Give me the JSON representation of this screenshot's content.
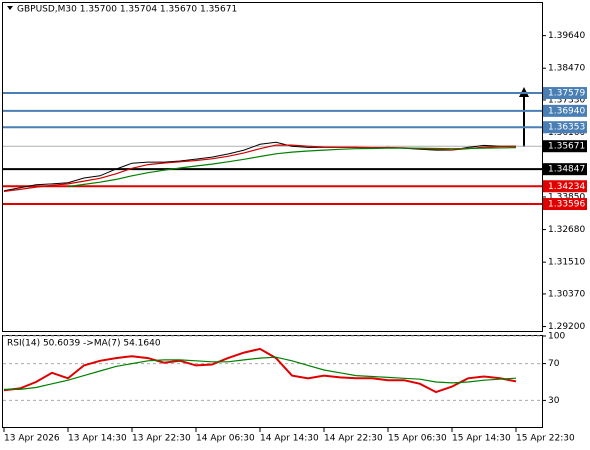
{
  "chart_data": [
    {
      "type": "line",
      "title": "GBPUSD,M30  1.35700 1.35704 1.35670 1.35671",
      "ylim": [
        1.2904,
        1.4081
      ],
      "yticks": [
        {
          "value": 1.3964,
          "label": "1.39640"
        },
        {
          "value": 1.3847,
          "label": "1.38470"
        },
        {
          "value": 1.3733,
          "label": "1.37330"
        },
        {
          "value": 1.3616,
          "label": "1.36160"
        },
        {
          "value": 1.3385,
          "label": "1.33850"
        },
        {
          "value": 1.3268,
          "label": "1.32680"
        },
        {
          "value": 1.3151,
          "label": "1.31510"
        },
        {
          "value": 1.3037,
          "label": "1.30370"
        },
        {
          "value": 1.292,
          "label": "1.29200"
        }
      ],
      "grid": false,
      "series": [
        {
          "color": "#000000",
          "values": [
            1.3407,
            1.3418,
            1.3429,
            1.3432,
            1.3436,
            1.3453,
            1.3461,
            1.3485,
            1.3506,
            1.351,
            1.351,
            1.3514,
            1.3521,
            1.3528,
            1.3539,
            1.3553,
            1.3574,
            1.3581,
            1.3567,
            1.3563,
            1.3563,
            1.3563,
            1.3563,
            1.356,
            1.3563,
            1.356,
            1.3556,
            1.3553,
            1.3553,
            1.3563,
            1.357,
            1.3567,
            1.3567
          ]
        },
        {
          "color": "#d00000",
          "values": [
            1.3405,
            1.3412,
            1.342,
            1.3427,
            1.3432,
            1.3442,
            1.3452,
            1.3468,
            1.3488,
            1.3501,
            1.3507,
            1.3511,
            1.3516,
            1.3522,
            1.3531,
            1.3543,
            1.3558,
            1.3571,
            1.3571,
            1.3567,
            1.3564,
            1.3563,
            1.3563,
            1.3562,
            1.3562,
            1.3561,
            1.3558,
            1.3556,
            1.3554,
            1.3558,
            1.3564,
            1.3566,
            1.3567
          ]
        },
        {
          "color": "#008000",
          "values": [
            null,
            null,
            null,
            null,
            1.3422,
            1.343,
            1.3438,
            1.3448,
            1.3461,
            1.3472,
            1.3481,
            1.3489,
            1.3496,
            1.3503,
            1.3511,
            1.352,
            1.353,
            1.354,
            1.3546,
            1.355,
            1.3553,
            1.3556,
            1.3558,
            1.3559,
            1.356,
            1.356,
            1.356,
            1.3559,
            1.3558,
            1.3559,
            1.356,
            1.3561,
            1.3562
          ]
        }
      ],
      "levels": [
        {
          "value": 1.37579,
          "color": "#4a7fb5"
        },
        {
          "value": 1.3694,
          "label": "1.36940",
          "color": "#4a7fb5"
        },
        {
          "value": 1.36353,
          "color": "#4a7fb5"
        },
        {
          "value": 1.34847,
          "color": "#000000"
        },
        {
          "value": 1.34234,
          "color": "#e00000"
        },
        {
          "value": 1.33596,
          "color": "#e00000"
        }
      ],
      "current_price": 1.35671
    },
    {
      "type": "line",
      "title": "RSI(14) 50.6039  ->MA(7) 54.1640",
      "categories": [
        "13 Apr 2026",
        null,
        null,
        null,
        "13 Apr 14:30",
        null,
        null,
        null,
        "13 Apr 22:30",
        null,
        null,
        null,
        "14 Apr 06:30",
        null,
        null,
        null,
        "14 Apr 14:30",
        null,
        null,
        null,
        "14 Apr 22:30",
        null,
        null,
        null,
        "15 Apr 06:30",
        null,
        null,
        null,
        "15 Apr 14:30",
        null,
        null,
        null,
        "15 Apr 22:30"
      ],
      "ylim": [
        0,
        100
      ],
      "yticks": [
        100,
        70,
        30
      ],
      "grid": true,
      "series": [
        {
          "color": "#e00000",
          "values": [
            41,
            43,
            50,
            60,
            54,
            68,
            73,
            76,
            78,
            76,
            71,
            73,
            68,
            69,
            76,
            82,
            86,
            76,
            57,
            54,
            57,
            55,
            54,
            54,
            52,
            52,
            48,
            39,
            45,
            54,
            56,
            54,
            50.6039
          ]
        },
        {
          "color": "#008000",
          "values": [
            42,
            42,
            44,
            48,
            52,
            57,
            62,
            67,
            70,
            73,
            74,
            74,
            73,
            72,
            72,
            74,
            76,
            77,
            73,
            68,
            63,
            60,
            57,
            56,
            55,
            54,
            53,
            50,
            49,
            50,
            52,
            53,
            54.164
          ]
        }
      ]
    }
  ]
}
